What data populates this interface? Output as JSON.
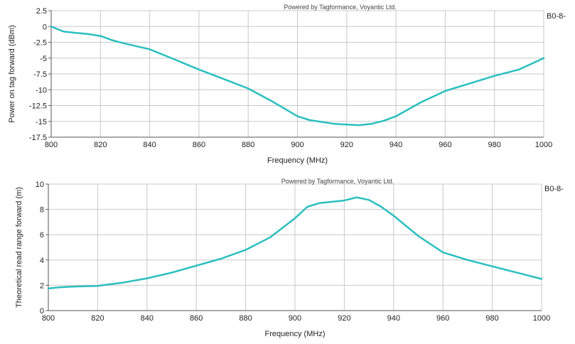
{
  "chart_data": [
    {
      "type": "line",
      "title": "Powered by Tagformance, Voyantic Ltd.",
      "xlabel": "Frequency (MHz)",
      "ylabel": "Power on tag forward (dBm)",
      "legend_label": "B0-8-",
      "legend_placement": "right",
      "grid": true,
      "xlim": [
        800,
        1000
      ],
      "ylim": [
        -17.5,
        2.5
      ],
      "x_ticks": [
        800,
        820,
        840,
        860,
        880,
        900,
        920,
        940,
        960,
        980,
        1000
      ],
      "y_ticks": [
        2.5,
        0,
        -2.5,
        -5,
        -7.5,
        -10,
        -12.5,
        -15,
        -17.5
      ],
      "x_tick_labels": [
        "800",
        "820",
        "840",
        "860",
        "880",
        "900",
        "920",
        "940",
        "960",
        "980",
        "1000"
      ],
      "y_tick_labels": [
        "2.5",
        "0",
        "-2.5",
        "-5",
        "-7.5",
        "-10",
        "-12.5",
        "-15",
        "-17.5"
      ],
      "series_color": "#2bbfbf",
      "series": [
        {
          "x": [
            800,
            805,
            810,
            815,
            820,
            825,
            830,
            840,
            850,
            860,
            870,
            880,
            890,
            900,
            905,
            910,
            915,
            920,
            925,
            930,
            935,
            940,
            950,
            960,
            970,
            980,
            990,
            1000
          ],
          "y": [
            0,
            -0.8,
            -1.0,
            -1.2,
            -1.5,
            -2.2,
            -2.7,
            -3.6,
            -5.2,
            -6.8,
            -8.3,
            -9.8,
            -11.9,
            -14.2,
            -14.8,
            -15.1,
            -15.4,
            -15.5,
            -15.6,
            -15.4,
            -14.9,
            -14.2,
            -12.0,
            -10.2,
            -9.0,
            -7.8,
            -6.8,
            -5.0
          ]
        }
      ]
    },
    {
      "type": "line",
      "title": "Powered by Tagformance, Voyantic Ltd.",
      "xlabel": "Frequency (MHz)",
      "ylabel": "Theoretical read range forward (m)",
      "legend_label": "B0-8-",
      "legend_placement": "right",
      "grid": true,
      "xlim": [
        800,
        1000
      ],
      "ylim": [
        0,
        10
      ],
      "x_ticks": [
        800,
        820,
        840,
        860,
        880,
        900,
        920,
        940,
        960,
        980,
        1000
      ],
      "y_ticks": [
        10,
        8,
        6,
        4,
        2,
        0
      ],
      "x_tick_labels": [
        "800",
        "820",
        "840",
        "860",
        "880",
        "900",
        "920",
        "940",
        "960",
        "980",
        "1000"
      ],
      "y_tick_labels": [
        "10",
        "8",
        "6",
        "4",
        "2",
        "0"
      ],
      "series_color": "#2bbfbf",
      "series": [
        {
          "x": [
            800,
            805,
            810,
            820,
            830,
            840,
            850,
            860,
            870,
            880,
            890,
            900,
            905,
            910,
            915,
            920,
            925,
            930,
            935,
            940,
            950,
            960,
            970,
            980,
            990,
            1000
          ],
          "y": [
            1.75,
            1.85,
            1.9,
            1.95,
            2.2,
            2.55,
            3.0,
            3.55,
            4.1,
            4.8,
            5.8,
            7.3,
            8.2,
            8.5,
            8.6,
            8.7,
            8.95,
            8.75,
            8.2,
            7.5,
            5.9,
            4.6,
            4.0,
            3.5,
            3.0,
            2.5
          ]
        }
      ]
    }
  ]
}
